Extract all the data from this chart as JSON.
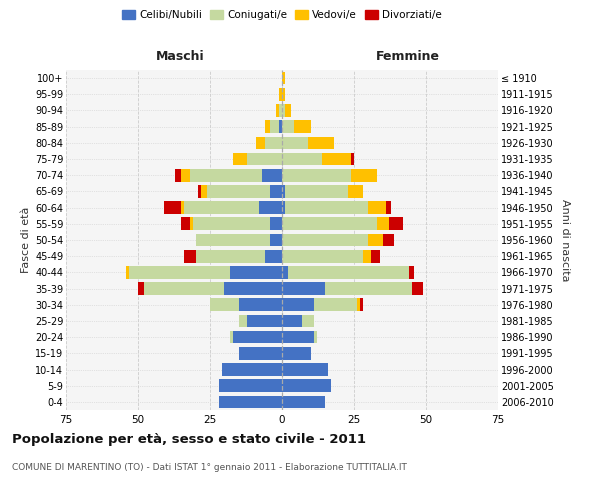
{
  "age_groups": [
    "100+",
    "95-99",
    "90-94",
    "85-89",
    "80-84",
    "75-79",
    "70-74",
    "65-69",
    "60-64",
    "55-59",
    "50-54",
    "45-49",
    "40-44",
    "35-39",
    "30-34",
    "25-29",
    "20-24",
    "15-19",
    "10-14",
    "5-9",
    "0-4"
  ],
  "birth_years": [
    "≤ 1910",
    "1911-1915",
    "1916-1920",
    "1921-1925",
    "1926-1930",
    "1931-1935",
    "1936-1940",
    "1941-1945",
    "1946-1950",
    "1951-1955",
    "1956-1960",
    "1961-1965",
    "1966-1970",
    "1971-1975",
    "1976-1980",
    "1981-1985",
    "1986-1990",
    "1991-1995",
    "1996-2000",
    "2001-2005",
    "2006-2010"
  ],
  "colors": {
    "celibe": "#4472C4",
    "coniugato": "#c5d9a0",
    "vedovo": "#ffc000",
    "divorziato": "#cc0000"
  },
  "maschi": {
    "celibe": [
      0,
      0,
      0,
      1,
      0,
      0,
      7,
      4,
      8,
      4,
      4,
      6,
      18,
      20,
      15,
      12,
      17,
      15,
      21,
      22,
      22
    ],
    "coniugato": [
      0,
      0,
      1,
      3,
      6,
      12,
      25,
      22,
      26,
      27,
      26,
      24,
      35,
      28,
      10,
      3,
      1,
      0,
      0,
      0,
      0
    ],
    "vedovo": [
      0,
      1,
      1,
      2,
      3,
      5,
      3,
      2,
      1,
      1,
      0,
      0,
      1,
      0,
      0,
      0,
      0,
      0,
      0,
      0,
      0
    ],
    "divorziato": [
      0,
      0,
      0,
      0,
      0,
      0,
      2,
      1,
      6,
      3,
      0,
      4,
      0,
      2,
      0,
      0,
      0,
      0,
      0,
      0,
      0
    ]
  },
  "femmine": {
    "nubile": [
      0,
      0,
      0,
      0,
      0,
      0,
      0,
      1,
      1,
      0,
      0,
      0,
      2,
      15,
      11,
      7,
      11,
      10,
      16,
      17,
      15
    ],
    "coniugata": [
      0,
      0,
      1,
      4,
      9,
      14,
      24,
      22,
      29,
      33,
      30,
      28,
      42,
      30,
      15,
      4,
      1,
      0,
      0,
      0,
      0
    ],
    "vedova": [
      1,
      1,
      2,
      6,
      9,
      10,
      9,
      5,
      6,
      4,
      5,
      3,
      0,
      0,
      1,
      0,
      0,
      0,
      0,
      0,
      0
    ],
    "divorziata": [
      0,
      0,
      0,
      0,
      0,
      1,
      0,
      0,
      2,
      5,
      4,
      3,
      2,
      4,
      1,
      0,
      0,
      0,
      0,
      0,
      0
    ]
  },
  "xlim": 75,
  "title": "Popolazione per età, sesso e stato civile - 2011",
  "subtitle": "COMUNE DI MARENTINO (TO) - Dati ISTAT 1° gennaio 2011 - Elaborazione TUTTITALIA.IT",
  "xlabel_left": "Maschi",
  "xlabel_right": "Femmine",
  "ylabel_left": "Fasce di età",
  "ylabel_right": "Anni di nascita",
  "bg_color": "#f5f5f5",
  "grid_color": "#cccccc"
}
